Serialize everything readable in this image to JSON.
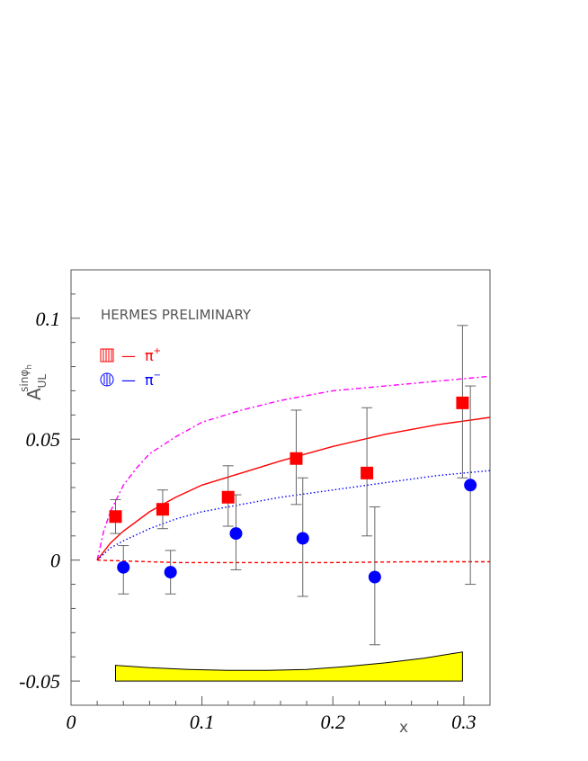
{
  "chart_data": {
    "type": "scatter",
    "annotation": "HERMES PRELIMINARY",
    "xlabel": "x",
    "ylabel": {
      "main": "A",
      "superscript": "sinφ",
      "superscript_sub": "h",
      "subscript": "UL"
    },
    "xlim": [
      0,
      0.32
    ],
    "ylim": [
      -0.06,
      0.12
    ],
    "xticks": [
      {
        "value": 0,
        "label": "0"
      },
      {
        "value": 0.1,
        "label": "0.1"
      },
      {
        "value": 0.2,
        "label": "0.2"
      },
      {
        "value": 0.3,
        "label": "0.3"
      }
    ],
    "yticks": [
      {
        "value": -0.05,
        "label": "-0.05"
      },
      {
        "value": 0,
        "label": "0"
      },
      {
        "value": 0.05,
        "label": "0.05"
      },
      {
        "value": 0.1,
        "label": "0.1"
      }
    ],
    "legend": [
      {
        "marker": "square",
        "color": "#ff0000",
        "dash": "—",
        "particle": "π",
        "charge": "+"
      },
      {
        "marker": "circle",
        "color": "#0000ff",
        "dash": "—",
        "particle": "π",
        "charge": "−"
      }
    ],
    "series": [
      {
        "name": "π+",
        "marker": "square",
        "color": "#ff0000",
        "points": [
          {
            "x": 0.034,
            "y": 0.018,
            "ylo": 0.011,
            "yhi": 0.025
          },
          {
            "x": 0.07,
            "y": 0.021,
            "ylo": 0.013,
            "yhi": 0.029
          },
          {
            "x": 0.12,
            "y": 0.026,
            "ylo": 0.014,
            "yhi": 0.039
          },
          {
            "x": 0.172,
            "y": 0.042,
            "ylo": 0.023,
            "yhi": 0.062
          },
          {
            "x": 0.226,
            "y": 0.036,
            "ylo": 0.01,
            "yhi": 0.063
          },
          {
            "x": 0.299,
            "y": 0.065,
            "ylo": 0.034,
            "yhi": 0.097
          }
        ]
      },
      {
        "name": "π−",
        "marker": "circle",
        "color": "#0000ff",
        "points": [
          {
            "x": 0.04,
            "y": -0.003,
            "ylo": -0.014,
            "yhi": 0.006
          },
          {
            "x": 0.076,
            "y": -0.005,
            "ylo": -0.014,
            "yhi": 0.004
          },
          {
            "x": 0.126,
            "y": 0.011,
            "ylo": -0.004,
            "yhi": 0.027
          },
          {
            "x": 0.177,
            "y": 0.009,
            "ylo": -0.015,
            "yhi": 0.034
          },
          {
            "x": 0.232,
            "y": -0.007,
            "ylo": -0.035,
            "yhi": 0.022
          },
          {
            "x": 0.305,
            "y": 0.031,
            "ylo": -0.01,
            "yhi": 0.072
          }
        ]
      }
    ],
    "curves": [
      {
        "name": "magenta-dashdot",
        "color": "#ff00ff",
        "dash": "6,3,2,3",
        "x": [
          0.02,
          0.025,
          0.03,
          0.04,
          0.05,
          0.06,
          0.08,
          0.1,
          0.13,
          0.16,
          0.2,
          0.24,
          0.28,
          0.32
        ],
        "y": [
          0.0,
          0.012,
          0.02,
          0.031,
          0.038,
          0.044,
          0.051,
          0.057,
          0.062,
          0.066,
          0.07,
          0.072,
          0.074,
          0.076
        ]
      },
      {
        "name": "red-solid",
        "color": "#ff0000",
        "dash": "",
        "x": [
          0.02,
          0.03,
          0.04,
          0.06,
          0.08,
          0.1,
          0.13,
          0.16,
          0.2,
          0.24,
          0.28,
          0.32
        ],
        "y": [
          0.0,
          0.007,
          0.012,
          0.02,
          0.026,
          0.031,
          0.036,
          0.041,
          0.047,
          0.052,
          0.056,
          0.059
        ]
      },
      {
        "name": "blue-dotted",
        "color": "#0000ff",
        "dash": "1.5,2.5",
        "x": [
          0.02,
          0.03,
          0.04,
          0.06,
          0.08,
          0.1,
          0.13,
          0.16,
          0.2,
          0.24,
          0.28,
          0.32
        ],
        "y": [
          0.0,
          0.005,
          0.008,
          0.013,
          0.017,
          0.02,
          0.023,
          0.026,
          0.029,
          0.032,
          0.035,
          0.037
        ]
      },
      {
        "name": "red-dashed",
        "color": "#ff0000",
        "dash": "4,3",
        "x": [
          0.02,
          0.08,
          0.14,
          0.2,
          0.26,
          0.32
        ],
        "y": [
          0.0,
          -0.001,
          -0.001,
          -0.001,
          -0.0007,
          -0.0007
        ]
      }
    ],
    "systematic_band": {
      "color": "#ffff00",
      "x": [
        0.034,
        0.06,
        0.09,
        0.12,
        0.15,
        0.18,
        0.21,
        0.24,
        0.27,
        0.299
      ],
      "upper": [
        -0.0435,
        -0.0445,
        -0.0452,
        -0.0456,
        -0.0456,
        -0.0452,
        -0.044,
        -0.0425,
        -0.0405,
        -0.038
      ],
      "baseline": -0.05
    }
  }
}
